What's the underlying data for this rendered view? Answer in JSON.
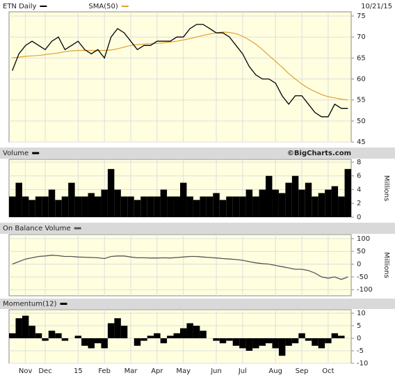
{
  "chart_data": [
    {
      "type": "line",
      "date": "10/21/15",
      "series": [
        {
          "name": "ETN Daily",
          "color": "#000000",
          "values": [
            62,
            66,
            68,
            69,
            68,
            67,
            69,
            70,
            67,
            68,
            69,
            67,
            66,
            67,
            65,
            70,
            72,
            71,
            69,
            67,
            68,
            68,
            69,
            69,
            69,
            70,
            70,
            72,
            73,
            73,
            72,
            71,
            71,
            70,
            68,
            66,
            63,
            61,
            60,
            60,
            59,
            56,
            54,
            56,
            56,
            54,
            52,
            51,
            51,
            54,
            53,
            53
          ]
        },
        {
          "name": "SMA(50)",
          "color": "#e0a030",
          "values": [
            65,
            65.2,
            65.4,
            65.5,
            65.6,
            65.8,
            66,
            66.2,
            66.5,
            66.7,
            66.8,
            66.8,
            66.8,
            66.8,
            66.8,
            66.9,
            67.2,
            67.6,
            68,
            68.2,
            68.3,
            68.4,
            68.5,
            68.6,
            68.8,
            69,
            69.3,
            69.6,
            70,
            70.4,
            70.7,
            71,
            71.2,
            71.1,
            70.8,
            70.2,
            69.3,
            68.3,
            67,
            65.6,
            64.2,
            62.8,
            61.3,
            60,
            58.8,
            57.8,
            57,
            56.3,
            55.8,
            55.5,
            55.2,
            55
          ]
        }
      ],
      "ylim": [
        45,
        76
      ],
      "yticks": [
        45,
        50,
        55,
        60,
        65,
        70,
        75
      ],
      "grid": true
    },
    {
      "type": "bar",
      "title": "Volume",
      "credit": "©BigCharts.com",
      "y_label": "Millions",
      "color": "#000000",
      "values": [
        3,
        5,
        3,
        2.5,
        3,
        3,
        4,
        2.5,
        3,
        5,
        3,
        3,
        3.5,
        3,
        4,
        7,
        4,
        3,
        3,
        2.5,
        3,
        3,
        3,
        4,
        3,
        3,
        5,
        3,
        2.5,
        3,
        3,
        3.5,
        2.5,
        3,
        3,
        3,
        4,
        3,
        4,
        6,
        4,
        3.5,
        5,
        6,
        4,
        5,
        3,
        3.5,
        4,
        4.5,
        3,
        7
      ],
      "ylim": [
        0,
        8.4
      ],
      "yticks": [
        0,
        2,
        4,
        6,
        8
      ],
      "grid": true
    },
    {
      "type": "line",
      "title": "On Balance Volume",
      "y_label": "Millions",
      "color": "#555555",
      "values": [
        0,
        10,
        20,
        25,
        30,
        32,
        35,
        33,
        30,
        30,
        28,
        27,
        26,
        25,
        22,
        30,
        32,
        32,
        28,
        25,
        25,
        24,
        24,
        25,
        24,
        26,
        28,
        30,
        30,
        28,
        26,
        24,
        22,
        20,
        18,
        15,
        10,
        5,
        2,
        0,
        -5,
        -10,
        -15,
        -20,
        -20,
        -25,
        -35,
        -50,
        -55,
        -50,
        -60,
        -50
      ],
      "ylim": [
        -124,
        116
      ],
      "yticks": [
        -100,
        -50,
        0,
        50,
        100
      ],
      "grid": true
    },
    {
      "type": "bar",
      "title": "Momentum(12)",
      "color": "#000000",
      "values": [
        2,
        8,
        9,
        5,
        2,
        -1,
        3,
        2,
        -1,
        0,
        1,
        -3,
        -4,
        -2,
        -4,
        6,
        8,
        5,
        0,
        -3,
        -1,
        1,
        2,
        -2,
        1,
        2,
        4,
        6,
        5,
        3,
        0,
        -1,
        -2,
        -1,
        -3,
        -4,
        -5,
        -4,
        -3,
        -2,
        -4,
        -7,
        -3,
        -2,
        2,
        -1,
        -3,
        -4,
        -2,
        2,
        1,
        0
      ],
      "ylim": [
        -10,
        11.4
      ],
      "yticks": [
        -10,
        -5,
        0,
        5,
        10
      ],
      "grid": true,
      "categories": [
        null,
        null,
        "Nov",
        null,
        null,
        "Dec",
        null,
        null,
        null,
        null,
        "15",
        null,
        null,
        null,
        "Feb",
        null,
        null,
        null,
        "Mar",
        null,
        null,
        null,
        "Apr",
        null,
        null,
        null,
        "May",
        null,
        null,
        null,
        null,
        "Jun",
        null,
        null,
        null,
        "Jul",
        null,
        null,
        null,
        null,
        "Aug",
        null,
        null,
        null,
        "Sep",
        null,
        null,
        null,
        "Oct",
        null,
        null,
        null
      ]
    }
  ]
}
